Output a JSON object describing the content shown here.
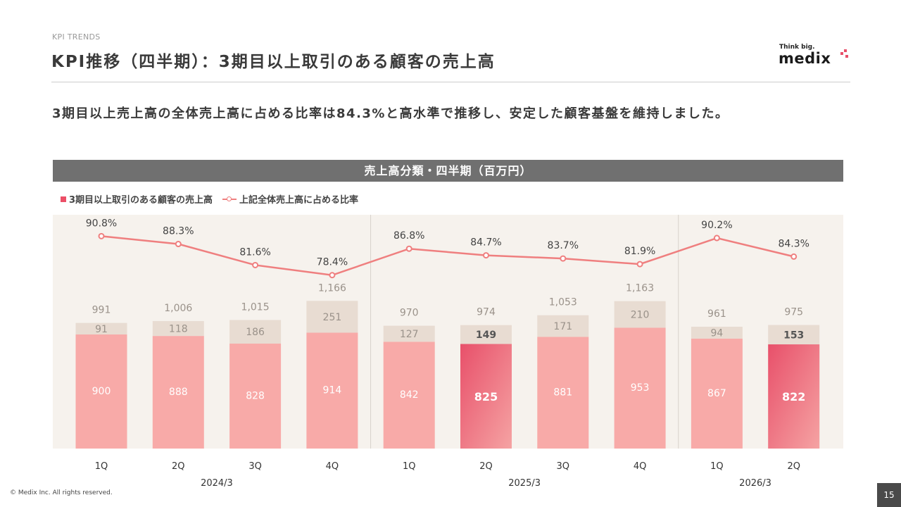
{
  "header": {
    "section_label": "KPI TRENDS",
    "title": "KPI推移（四半期）：3期目以上取引のある顧客の売上高"
  },
  "logo": {
    "tagline": "Think big.",
    "wordmark": "medix"
  },
  "lead": "3期目以上売上高の全体売上高に占める比率は84.3%と高水準で推移し、安定した顧客基盤を維持しました。",
  "chart_title": "売上高分類・四半期（百万円）",
  "legend": {
    "bar_label": "3期目以上取引のある顧客の売上高",
    "line_label": "上記全体売上高に占める比率"
  },
  "colors": {
    "bar_base": "#f8aaa8",
    "bar_highlight": "#e8506a",
    "bar_other": "#e8dcd2",
    "line": "#ef7f7f",
    "plot_bg": "#f6f2ed"
  },
  "chart_data": {
    "type": "bar",
    "stacked": true,
    "categories": [
      "1Q",
      "2Q",
      "3Q",
      "4Q",
      "1Q",
      "2Q",
      "3Q",
      "4Q",
      "1Q",
      "2Q"
    ],
    "periods": [
      {
        "label": "2024/3",
        "categories": [
          "1Q",
          "2Q",
          "3Q",
          "4Q"
        ]
      },
      {
        "label": "2025/3",
        "categories": [
          "1Q",
          "2Q",
          "3Q",
          "4Q"
        ]
      },
      {
        "label": "2026/3",
        "categories": [
          "1Q",
          "2Q"
        ]
      }
    ],
    "series": [
      {
        "name": "3期目以上取引のある顧客の売上高",
        "type": "bar",
        "values": [
          900,
          888,
          828,
          914,
          842,
          825,
          881,
          953,
          867,
          822
        ]
      },
      {
        "type": "bar",
        "values": [
          91,
          118,
          186,
          251,
          127,
          149,
          171,
          210,
          94,
          153
        ]
      },
      {
        "name": "上記全体売上高に占める比率",
        "type": "line",
        "values": [
          90.8,
          88.3,
          81.6,
          78.4,
          86.8,
          84.7,
          83.7,
          81.9,
          90.2,
          84.3
        ]
      }
    ],
    "totals": [
      "991",
      "1,006",
      "1,015",
      "1,166",
      "970",
      "974",
      "1,053",
      "1,163",
      "961",
      "975"
    ],
    "ratio_labels": [
      "90.8%",
      "88.3%",
      "81.6%",
      "78.4%",
      "86.8%",
      "84.7%",
      "83.7%",
      "81.9%",
      "90.2%",
      "84.3%"
    ],
    "highlight_indices": [
      5,
      9
    ],
    "ylim": [
      0,
      1300
    ]
  },
  "footer": {
    "copyright": "© Medix Inc. All rights reserved.",
    "page_number": "15"
  }
}
